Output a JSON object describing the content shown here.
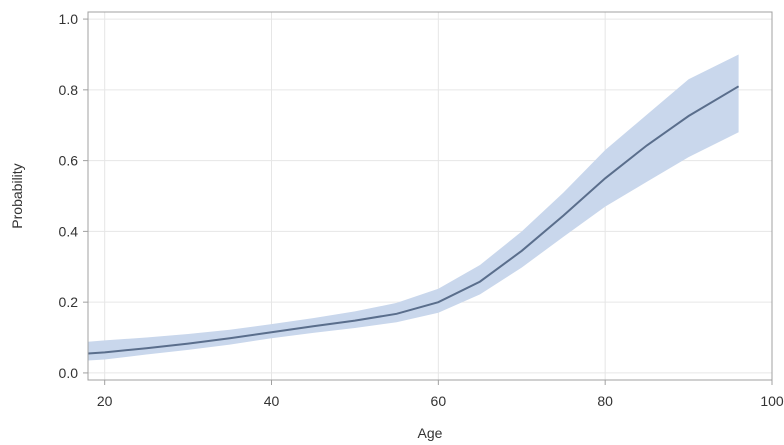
{
  "chart_data": {
    "type": "line",
    "title": "",
    "xlabel": "Age",
    "ylabel": "Probability",
    "xlim": [
      18,
      100
    ],
    "ylim": [
      -0.02,
      1.02
    ],
    "x_ticks": [
      20,
      40,
      60,
      80,
      100
    ],
    "y_ticks": [
      0.0,
      0.2,
      0.4,
      0.6,
      0.8,
      1.0
    ],
    "x_tick_labels": [
      "20",
      "40",
      "60",
      "80",
      "100"
    ],
    "y_tick_labels": [
      "0.0",
      "0.2",
      "0.4",
      "0.6",
      "0.8",
      "1.0"
    ],
    "grid": true,
    "legend": "none",
    "colors": {
      "line": "#5a6e8c",
      "band": "#c9d7ec",
      "grid": "#e6e6e6",
      "frame": "#a0a0a0"
    },
    "series": [
      {
        "x": [
          18,
          20,
          25,
          30,
          35,
          40,
          45,
          50,
          55,
          60,
          65,
          70,
          75,
          80,
          85,
          90,
          96
        ],
        "y": [
          0.055,
          0.058,
          0.07,
          0.083,
          0.098,
          0.115,
          0.132,
          0.148,
          0.167,
          0.2,
          0.258,
          0.345,
          0.445,
          0.55,
          0.643,
          0.726,
          0.81
        ],
        "lower": [
          0.035,
          0.038,
          0.052,
          0.065,
          0.08,
          0.098,
          0.113,
          0.127,
          0.143,
          0.17,
          0.222,
          0.298,
          0.385,
          0.47,
          0.54,
          0.61,
          0.68
        ],
        "upper": [
          0.088,
          0.092,
          0.1,
          0.11,
          0.122,
          0.138,
          0.155,
          0.174,
          0.198,
          0.238,
          0.305,
          0.4,
          0.51,
          0.63,
          0.73,
          0.83,
          0.9
        ]
      }
    ]
  }
}
